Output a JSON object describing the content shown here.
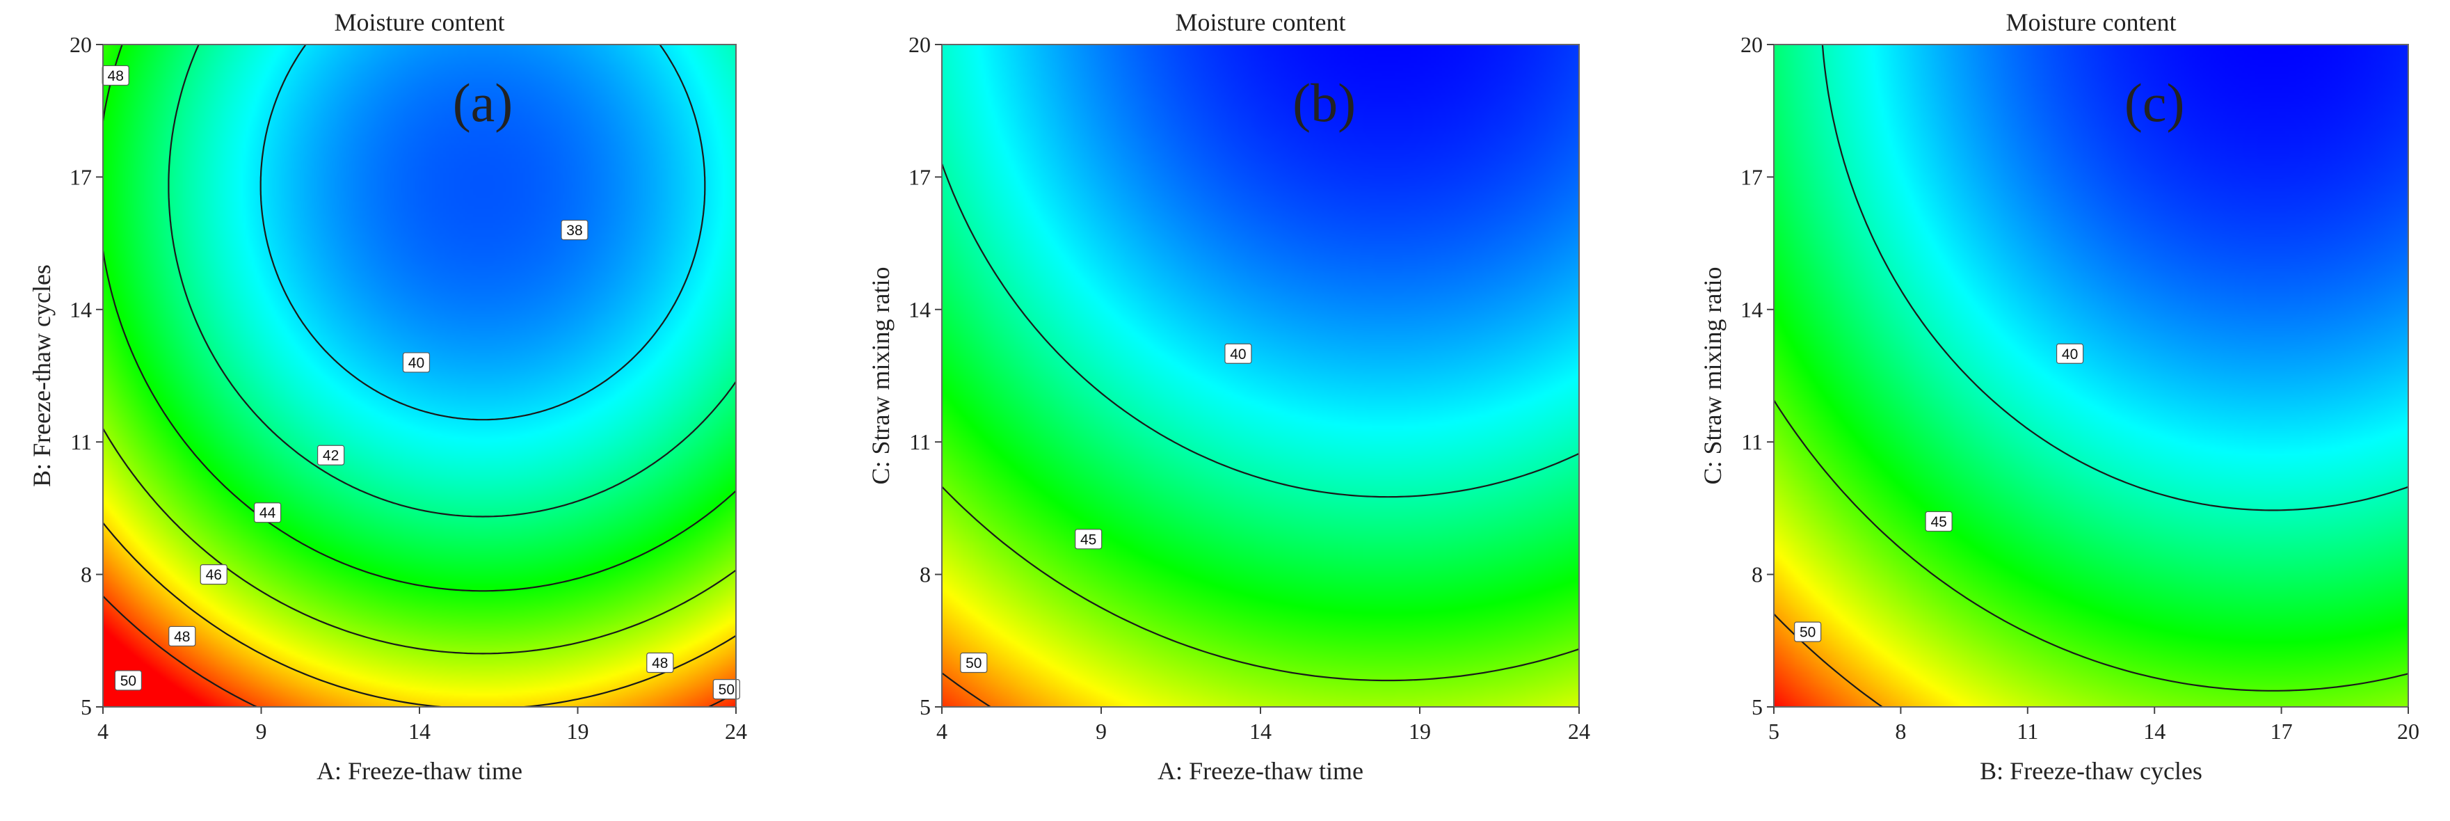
{
  "chart_data": [
    {
      "type": "heatmap",
      "subtype": "contour",
      "panel_tag": "(a)",
      "title": "Moisture content",
      "xlabel": "A: Freeze-thaw time",
      "ylabel": "B: Freeze-thaw cycles",
      "xlim": [
        4,
        24
      ],
      "ylim": [
        5,
        20
      ],
      "xticks": [
        "4",
        "9",
        "14",
        "19",
        "24"
      ],
      "yticks": [
        "5",
        "8",
        "11",
        "14",
        "17",
        "20"
      ],
      "colorscale": [
        "#ff0000",
        "#ffff00",
        "#00ff00",
        "#00ffff",
        "#0000ff"
      ],
      "surface_model": {
        "form": "a*(x-xc)^2 + b*(y-yc)^2 + m",
        "xc": 16.0,
        "yc": 16.8,
        "a": 0.0406,
        "b": 0.0713,
        "m": 38.0,
        "z_min": 36.8,
        "z_max": 51.0
      },
      "contours": [
        {
          "level": "38",
          "label_at": [
            18.9,
            15.8
          ]
        },
        {
          "level": "40",
          "label_at": [
            13.9,
            12.8
          ]
        },
        {
          "level": "42",
          "label_at": [
            11.2,
            10.7
          ]
        },
        {
          "level": "44",
          "label_at": [
            9.2,
            9.4
          ]
        },
        {
          "level": "46",
          "label_at": [
            7.5,
            8.0
          ]
        },
        {
          "level": "48",
          "label_at": [
            4.4,
            19.3
          ],
          "label_at_2": [
            6.5,
            6.6
          ],
          "label_at_3": [
            21.6,
            6.0
          ]
        },
        {
          "level": "50",
          "label_at": [
            4.8,
            5.6
          ],
          "label_at_2": [
            23.7,
            5.4
          ]
        }
      ]
    },
    {
      "type": "heatmap",
      "subtype": "contour",
      "panel_tag": "(b)",
      "title": "Moisture content",
      "xlabel": "A: Freeze-thaw time",
      "ylabel": "C: Straw mixing ratio",
      "xlim": [
        4,
        24
      ],
      "ylim": [
        5,
        20
      ],
      "xticks": [
        "4",
        "9",
        "14",
        "19",
        "24"
      ],
      "yticks": [
        "5",
        "8",
        "11",
        "14",
        "17",
        "20"
      ],
      "colorscale": [
        "#ff0000",
        "#ffff00",
        "#00ff00",
        "#00ffff",
        "#0000ff"
      ],
      "surface_model": {
        "form": "a*(x-xc)^2 + b*(y-yc)^2 + m",
        "xc": 18.0,
        "yc": 21.5,
        "a": 0.0267,
        "b": 0.0435,
        "m": 34.0,
        "z_min": 34.0,
        "z_max": 52.0
      },
      "contours": [
        {
          "level": "40",
          "label_at": [
            13.3,
            13.0
          ]
        },
        {
          "level": "45",
          "label_at": [
            8.6,
            8.8
          ]
        },
        {
          "level": "50",
          "label_at": [
            5.0,
            6.0
          ]
        }
      ]
    },
    {
      "type": "heatmap",
      "subtype": "contour",
      "panel_tag": "(c)",
      "title": "Moisture content",
      "xlabel": "B: Freeze-thaw cycles",
      "ylabel": "C: Straw mixing ratio",
      "xlim": [
        5,
        20
      ],
      "ylim": [
        5,
        20
      ],
      "xticks": [
        "5",
        "8",
        "11",
        "14",
        "17",
        "20"
      ],
      "yticks": [
        "5",
        "8",
        "11",
        "14",
        "17",
        "20"
      ],
      "colorscale": [
        "#ff0000",
        "#ffff00",
        "#00ff00",
        "#00ffff",
        "#0000ff"
      ],
      "surface_model": {
        "form": "a*(x-xc)^2 + b*(y-yc)^2 + m",
        "xc": 16.8,
        "yc": 21.0,
        "a": 0.0525,
        "b": 0.045,
        "m": 34.0,
        "z_min": 34.0,
        "z_max": 53.0
      },
      "contours": [
        {
          "level": "40",
          "label_at": [
            12.0,
            13.0
          ]
        },
        {
          "level": "45",
          "label_at": [
            8.9,
            9.2
          ]
        },
        {
          "level": "50",
          "label_at": [
            5.8,
            6.7
          ]
        }
      ]
    }
  ]
}
